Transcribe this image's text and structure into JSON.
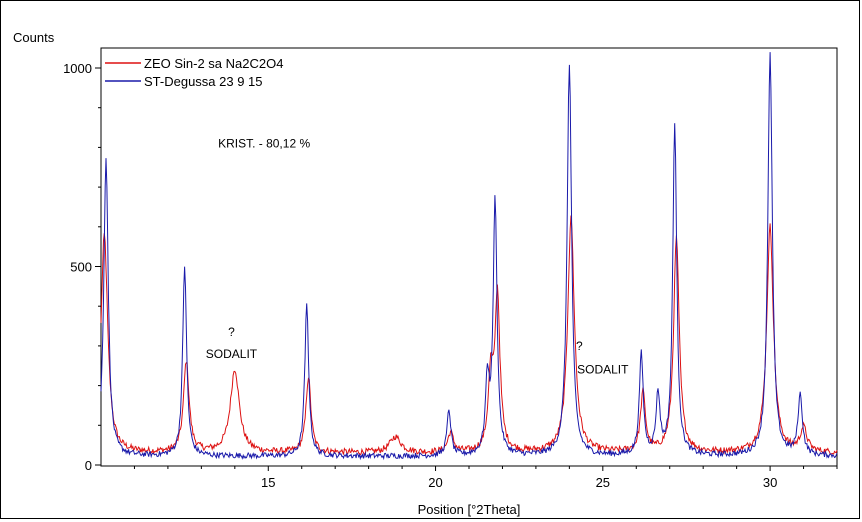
{
  "chart_data": {
    "type": "line",
    "ylabel": "Counts",
    "xlabel": "Position [°2Theta]",
    "xlim": [
      10,
      32
    ],
    "ylim": [
      0,
      1000
    ],
    "x_ticks": [
      15,
      20,
      25,
      30
    ],
    "y_ticks": [
      0,
      500,
      1000
    ],
    "legend_position": "top-left",
    "grid": false,
    "annotations": [
      {
        "text": "KRIST. - 80,12 %",
        "x": 13.5,
        "y": 800
      },
      {
        "text": "?",
        "x": 13.9,
        "y": 325
      },
      {
        "text": "SODALIT",
        "x": 13.9,
        "y": 270
      },
      {
        "text": "?",
        "x": 24.3,
        "y": 290
      },
      {
        "text": "SODALIT",
        "x": 25.0,
        "y": 230
      }
    ],
    "series": [
      {
        "name": "ZEO Sin-2 sa Na2C2O4",
        "color": "#dd1111",
        "baseline": 30,
        "noise": 8,
        "peaks": [
          [
            10.1,
            550,
            0.12
          ],
          [
            12.55,
            230,
            0.1
          ],
          [
            14.0,
            210,
            0.16
          ],
          [
            16.2,
            190,
            0.09
          ],
          [
            18.8,
            40,
            0.2
          ],
          [
            20.45,
            50,
            0.1
          ],
          [
            21.65,
            180,
            0.09
          ],
          [
            21.85,
            390,
            0.09
          ],
          [
            24.05,
            590,
            0.12
          ],
          [
            26.2,
            150,
            0.09
          ],
          [
            27.2,
            540,
            0.1
          ],
          [
            30.0,
            570,
            0.12
          ],
          [
            31.0,
            60,
            0.12
          ]
        ]
      },
      {
        "name": "ST-Degussa 23 9 15",
        "color": "#1a1aaa",
        "baseline": 22,
        "noise": 7,
        "peaks": [
          [
            10.15,
            750,
            0.08
          ],
          [
            12.5,
            480,
            0.07
          ],
          [
            16.15,
            380,
            0.07
          ],
          [
            20.4,
            115,
            0.07
          ],
          [
            21.55,
            180,
            0.07
          ],
          [
            21.78,
            640,
            0.07
          ],
          [
            24.0,
            990,
            0.08
          ],
          [
            26.15,
            255,
            0.07
          ],
          [
            26.65,
            150,
            0.07
          ],
          [
            27.15,
            840,
            0.07
          ],
          [
            30.0,
            1020,
            0.08
          ],
          [
            30.9,
            150,
            0.08
          ]
        ]
      }
    ]
  }
}
